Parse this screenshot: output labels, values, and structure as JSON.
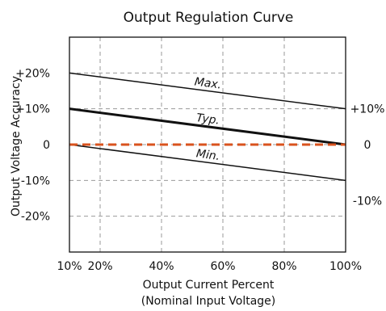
{
  "chart_data": {
    "type": "line",
    "title": "Output Regulation Curve",
    "xlabel": "Output Current Percent",
    "xlabel_sub": "(Nominal Input Voltage)",
    "ylabel": "Output Voltage Accuracy",
    "xlim": [
      10,
      100
    ],
    "ylim": [
      -30,
      30
    ],
    "x_ticks": [
      {
        "value": 10,
        "label": "10%"
      },
      {
        "value": 20,
        "label": "20%"
      },
      {
        "value": 40,
        "label": "40%"
      },
      {
        "value": 60,
        "label": "60%"
      },
      {
        "value": 80,
        "label": "80%"
      },
      {
        "value": 100,
        "label": "100%"
      }
    ],
    "y_ticks_left": [
      {
        "value": 20,
        "label": "+20%"
      },
      {
        "value": 10,
        "label": "+10%"
      },
      {
        "value": 0,
        "label": "0"
      },
      {
        "value": -10,
        "label": "-10%"
      },
      {
        "value": -20,
        "label": "-20%"
      }
    ],
    "y_ticks_right": [
      {
        "value": 10,
        "label": "+10%"
      },
      {
        "value": 0,
        "label": "0"
      },
      {
        "value": -10,
        "label": "-10%"
      }
    ],
    "grid_x": [
      20,
      40,
      60,
      80
    ],
    "grid_y": [
      20,
      10,
      0,
      -10,
      -20
    ],
    "grid": true,
    "legend": "none",
    "series": [
      {
        "name": "Max.",
        "x": [
          10,
          100
        ],
        "y": [
          20,
          10
        ],
        "style": "thin",
        "color": "#111111",
        "label_at_x": 55
      },
      {
        "name": "Typ.",
        "x": [
          10,
          100
        ],
        "y": [
          10,
          0
        ],
        "style": "thick",
        "color": "#111111",
        "label_at_x": 55
      },
      {
        "name": "Min.",
        "x": [
          10,
          100
        ],
        "y": [
          0,
          -10
        ],
        "style": "thin",
        "color": "#111111",
        "label_at_x": 55
      },
      {
        "name": "",
        "x": [
          10,
          100
        ],
        "y": [
          0,
          0
        ],
        "style": "dashed",
        "color": "#d9531e"
      }
    ]
  }
}
